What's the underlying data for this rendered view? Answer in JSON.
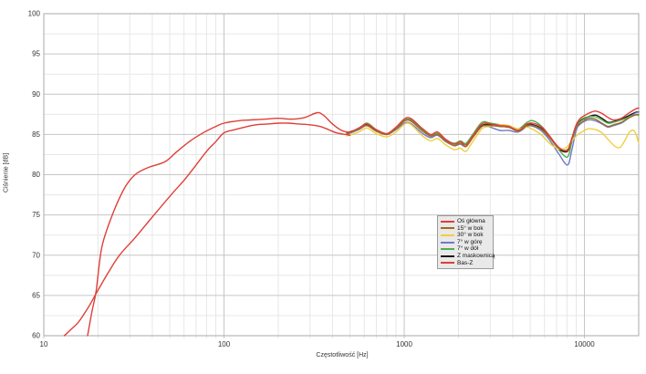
{
  "chart_data": {
    "type": "line",
    "title": "",
    "xlabel": "Częstotliwość [Hz]",
    "ylabel": "Ciśnienie [dB]",
    "x_scale": "log",
    "xlim": [
      10,
      20000
    ],
    "ylim": [
      60,
      100
    ],
    "x_major_ticks": [
      10,
      100,
      1000,
      10000
    ],
    "y_major_ticks": [
      60,
      65,
      70,
      75,
      80,
      85,
      90,
      95,
      100
    ],
    "y_minor_step": 2.5,
    "grid": true,
    "legend_position": "center-right",
    "colors": {
      "grid_major": "#c6c6c6",
      "grid_minor": "#e7e7e7",
      "plot_border": "#aaaaaa",
      "legend_bg": "#e9e9e9",
      "legend_border": "#9a9a9a"
    },
    "draw_order": [
      5,
      3,
      4,
      2,
      1,
      0,
      6
    ],
    "series": [
      {
        "name": "Oś główna",
        "slug": "os-glowna",
        "color": "#e03e38",
        "points": [
          [
            17.5,
            60
          ],
          [
            18.5,
            63
          ],
          [
            19.5,
            65.5
          ],
          [
            21,
            71
          ],
          [
            24,
            75
          ],
          [
            27.5,
            78
          ],
          [
            30,
            79.3
          ],
          [
            33,
            80.2
          ],
          [
            38,
            80.9
          ],
          [
            47,
            81.6
          ],
          [
            55,
            82.9
          ],
          [
            65,
            84.2
          ],
          [
            78,
            85.3
          ],
          [
            90,
            86
          ],
          [
            100,
            86.4
          ],
          [
            120,
            86.7
          ],
          [
            140,
            86.8
          ],
          [
            170,
            86.9
          ],
          [
            200,
            87
          ],
          [
            240,
            86.9
          ],
          [
            280,
            87.1
          ],
          [
            330,
            87.7
          ],
          [
            360,
            87.3
          ],
          [
            400,
            86.3
          ],
          [
            450,
            85.5
          ],
          [
            500,
            85.3
          ],
          [
            560,
            85.8
          ],
          [
            620,
            86.3
          ],
          [
            700,
            85.6
          ],
          [
            800,
            85.1
          ],
          [
            900,
            85.9
          ],
          [
            1050,
            87.1
          ],
          [
            1250,
            85.8
          ],
          [
            1400,
            85
          ],
          [
            1530,
            85.3
          ],
          [
            1700,
            84.4
          ],
          [
            1900,
            83.8
          ],
          [
            2050,
            84.1
          ],
          [
            2200,
            83.7
          ],
          [
            2400,
            84.8
          ],
          [
            2700,
            86.3
          ],
          [
            3000,
            86.3
          ],
          [
            3400,
            86.1
          ],
          [
            3800,
            86
          ],
          [
            4300,
            85.5
          ],
          [
            4800,
            86.3
          ],
          [
            5200,
            86.4
          ],
          [
            5800,
            85.9
          ],
          [
            6400,
            84.8
          ],
          [
            7200,
            83.4
          ],
          [
            8050,
            83
          ],
          [
            8500,
            84.5
          ],
          [
            9000,
            86.2
          ],
          [
            9500,
            87
          ],
          [
            10500,
            87.6
          ],
          [
            11500,
            87.9
          ],
          [
            12500,
            87.6
          ],
          [
            13500,
            87.1
          ],
          [
            14500,
            86.8
          ],
          [
            16000,
            87
          ],
          [
            17500,
            87.6
          ],
          [
            19000,
            88.1
          ],
          [
            20000,
            88.3
          ]
        ]
      },
      {
        "name": "15° w bok",
        "slug": "15-w-bok",
        "color": "#9e6b22",
        "points": [
          [
            480,
            85.1
          ],
          [
            560,
            85.7
          ],
          [
            620,
            86.1
          ],
          [
            700,
            85.4
          ],
          [
            800,
            85
          ],
          [
            900,
            85.7
          ],
          [
            1050,
            86.8
          ],
          [
            1250,
            85.5
          ],
          [
            1400,
            84.8
          ],
          [
            1530,
            85
          ],
          [
            1700,
            84.2
          ],
          [
            1900,
            83.6
          ],
          [
            2050,
            83.9
          ],
          [
            2200,
            83.5
          ],
          [
            2400,
            84.6
          ],
          [
            2700,
            86
          ],
          [
            3000,
            86.1
          ],
          [
            3400,
            86
          ],
          [
            3800,
            85.9
          ],
          [
            4300,
            85.4
          ],
          [
            4800,
            86.1
          ],
          [
            5200,
            86.1
          ],
          [
            5800,
            85.6
          ],
          [
            6400,
            84.6
          ],
          [
            7200,
            83.3
          ],
          [
            8050,
            83.1
          ],
          [
            8500,
            84.4
          ],
          [
            9000,
            85.9
          ],
          [
            9500,
            86.4
          ],
          [
            10500,
            87
          ],
          [
            11500,
            86.9
          ],
          [
            12500,
            86.4
          ],
          [
            13500,
            86
          ],
          [
            14500,
            86.2
          ],
          [
            16000,
            86.5
          ],
          [
            17500,
            87
          ],
          [
            19000,
            87.4
          ],
          [
            20000,
            87.5
          ]
        ]
      },
      {
        "name": "30° w bok",
        "slug": "30-w-bok",
        "color": "#efcf3e",
        "points": [
          [
            480,
            84.8
          ],
          [
            560,
            85.3
          ],
          [
            620,
            85.8
          ],
          [
            700,
            85.1
          ],
          [
            800,
            84.7
          ],
          [
            900,
            85.3
          ],
          [
            1050,
            86.4
          ],
          [
            1250,
            84.9
          ],
          [
            1400,
            84.2
          ],
          [
            1530,
            84.5
          ],
          [
            1700,
            83.7
          ],
          [
            1900,
            83.1
          ],
          [
            2050,
            83.3
          ],
          [
            2200,
            82.9
          ],
          [
            2400,
            84.1
          ],
          [
            2700,
            85.7
          ],
          [
            3000,
            86
          ],
          [
            3600,
            86.2
          ],
          [
            4300,
            85.7
          ],
          [
            4800,
            85.9
          ],
          [
            5300,
            85.5
          ],
          [
            5800,
            84.9
          ],
          [
            6400,
            83.9
          ],
          [
            7000,
            83.3
          ],
          [
            7600,
            83.2
          ],
          [
            8050,
            83.5
          ],
          [
            8500,
            84.2
          ],
          [
            9000,
            84.8
          ],
          [
            9500,
            85.2
          ],
          [
            10500,
            85.7
          ],
          [
            11500,
            85.6
          ],
          [
            12500,
            85.2
          ],
          [
            13500,
            84.4
          ],
          [
            14800,
            83.5
          ],
          [
            15800,
            83.4
          ],
          [
            16800,
            84.3
          ],
          [
            17800,
            85.3
          ],
          [
            18800,
            85.5
          ],
          [
            19400,
            84.9
          ],
          [
            20000,
            83.9
          ]
        ]
      },
      {
        "name": "7° w górę",
        "slug": "7-w-gore",
        "color": "#6e7bc8",
        "points": [
          [
            480,
            85
          ],
          [
            560,
            85.6
          ],
          [
            620,
            86.1
          ],
          [
            700,
            85.4
          ],
          [
            800,
            85
          ],
          [
            900,
            85.6
          ],
          [
            1050,
            86.5
          ],
          [
            1250,
            85.2
          ],
          [
            1400,
            84.6
          ],
          [
            1530,
            84.9
          ],
          [
            1700,
            84.1
          ],
          [
            1900,
            83.6
          ],
          [
            2050,
            83.8
          ],
          [
            2200,
            83.5
          ],
          [
            2400,
            84.6
          ],
          [
            2700,
            86
          ],
          [
            3000,
            85.9
          ],
          [
            3400,
            85.5
          ],
          [
            3800,
            85.5
          ],
          [
            4300,
            85.3
          ],
          [
            4800,
            86
          ],
          [
            5200,
            86
          ],
          [
            5800,
            85.4
          ],
          [
            6400,
            84.3
          ],
          [
            7200,
            82.6
          ],
          [
            8050,
            81.2
          ],
          [
            8500,
            83
          ],
          [
            9000,
            85.5
          ],
          [
            9500,
            86.3
          ],
          [
            10500,
            86.8
          ],
          [
            11500,
            86.7
          ],
          [
            12500,
            86.3
          ],
          [
            13500,
            85.9
          ],
          [
            14500,
            86.1
          ],
          [
            16000,
            86.4
          ],
          [
            17500,
            87
          ],
          [
            19000,
            87.6
          ],
          [
            20000,
            87.8
          ]
        ]
      },
      {
        "name": "7° w dół",
        "slug": "7-w-dol",
        "color": "#53ad53",
        "points": [
          [
            480,
            85.1
          ],
          [
            560,
            85.7
          ],
          [
            620,
            86.4
          ],
          [
            700,
            85.6
          ],
          [
            800,
            85.1
          ],
          [
            900,
            85.8
          ],
          [
            1050,
            86.9
          ],
          [
            1250,
            85.6
          ],
          [
            1400,
            84.9
          ],
          [
            1530,
            85.1
          ],
          [
            1700,
            84.3
          ],
          [
            1900,
            83.9
          ],
          [
            2050,
            84.2
          ],
          [
            2200,
            83.9
          ],
          [
            2400,
            85
          ],
          [
            2700,
            86.5
          ],
          [
            3000,
            86.4
          ],
          [
            3400,
            86.2
          ],
          [
            3800,
            86.1
          ],
          [
            4300,
            85.7
          ],
          [
            4800,
            86.5
          ],
          [
            5200,
            86.7
          ],
          [
            5800,
            86
          ],
          [
            6400,
            84.8
          ],
          [
            7200,
            83.1
          ],
          [
            8050,
            82.2
          ],
          [
            8500,
            84
          ],
          [
            9000,
            86
          ],
          [
            9500,
            86.8
          ],
          [
            10500,
            87.2
          ],
          [
            11500,
            87.2
          ],
          [
            12500,
            86.8
          ],
          [
            13500,
            86.4
          ],
          [
            14500,
            86.5
          ],
          [
            16000,
            86.8
          ],
          [
            17500,
            87.1
          ],
          [
            19000,
            87.4
          ],
          [
            20000,
            87.4
          ]
        ]
      },
      {
        "name": "Z maskownicą",
        "slug": "z-maskownica",
        "color": "#141414",
        "points": [
          [
            480,
            85.2
          ],
          [
            560,
            85.7
          ],
          [
            620,
            86.2
          ],
          [
            700,
            85.5
          ],
          [
            800,
            85
          ],
          [
            900,
            85.7
          ],
          [
            1050,
            86.9
          ],
          [
            1250,
            85.6
          ],
          [
            1400,
            84.8
          ],
          [
            1530,
            85.1
          ],
          [
            1700,
            84.2
          ],
          [
            1900,
            83.6
          ],
          [
            2050,
            83.9
          ],
          [
            2200,
            83.5
          ],
          [
            2400,
            84.7
          ],
          [
            2700,
            86.1
          ],
          [
            3000,
            86.2
          ],
          [
            3400,
            86
          ],
          [
            3800,
            85.9
          ],
          [
            4300,
            85.5
          ],
          [
            4800,
            86.2
          ],
          [
            5200,
            86.2
          ],
          [
            5800,
            85.7
          ],
          [
            6400,
            84.7
          ],
          [
            7200,
            83.2
          ],
          [
            8050,
            82.9
          ],
          [
            8500,
            84.3
          ],
          [
            9000,
            86
          ],
          [
            9500,
            86.7
          ],
          [
            10500,
            87.2
          ],
          [
            11500,
            87.4
          ],
          [
            12500,
            87
          ],
          [
            13500,
            86.5
          ],
          [
            14500,
            86.6
          ],
          [
            16000,
            86.9
          ],
          [
            17500,
            87.3
          ],
          [
            19000,
            87.7
          ],
          [
            20000,
            87.8
          ]
        ]
      },
      {
        "name": "Bas-Z",
        "slug": "bas-z",
        "color": "#e03e38",
        "points": [
          [
            13,
            60
          ],
          [
            14.2,
            60.8
          ],
          [
            15.6,
            61.7
          ],
          [
            17.3,
            63.2
          ],
          [
            18.3,
            64.1
          ],
          [
            19.7,
            65.4
          ],
          [
            22.6,
            67.7
          ],
          [
            26.3,
            70
          ],
          [
            32.2,
            72.2
          ],
          [
            39.2,
            74.5
          ],
          [
            51.3,
            77.6
          ],
          [
            60,
            79.3
          ],
          [
            70,
            81.2
          ],
          [
            80,
            82.9
          ],
          [
            90,
            84.1
          ],
          [
            100,
            85.2
          ],
          [
            115,
            85.6
          ],
          [
            130,
            85.9
          ],
          [
            150,
            86.2
          ],
          [
            175,
            86.3
          ],
          [
            200,
            86.4
          ],
          [
            230,
            86.4
          ],
          [
            260,
            86.3
          ],
          [
            300,
            86.2
          ],
          [
            340,
            86
          ],
          [
            380,
            85.6
          ],
          [
            420,
            85.2
          ],
          [
            470,
            85
          ],
          [
            500,
            84.9
          ]
        ]
      }
    ]
  }
}
